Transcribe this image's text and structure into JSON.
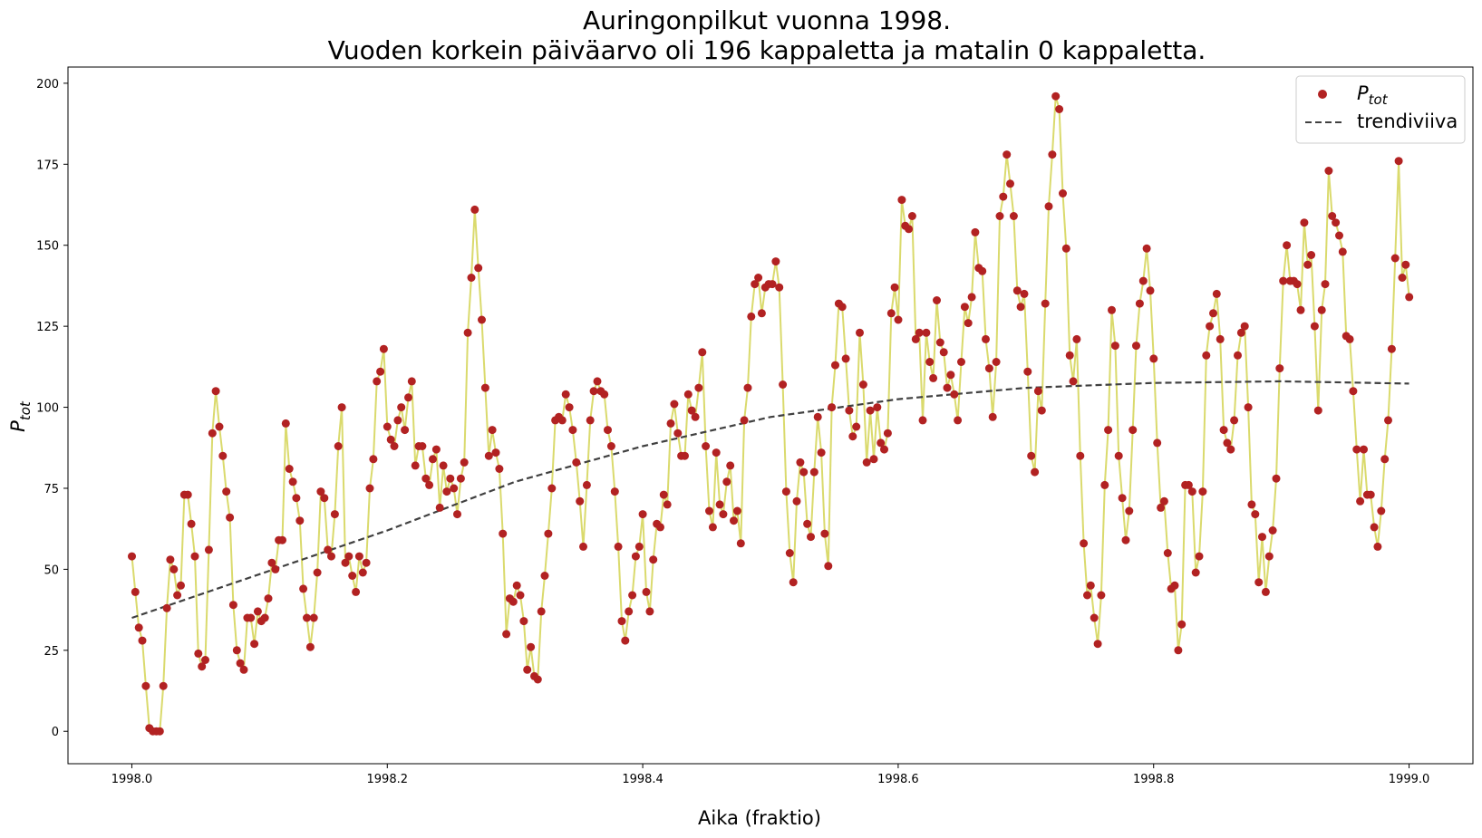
{
  "chart_data": {
    "type": "scatter",
    "title_line1": "Auringonpilkut vuonna 1998.",
    "title_line2": "Vuoden korkein päiväarvo oli 196 kappaletta ja matalin 0 kappaletta.",
    "xlabel": "Aika (fraktio)",
    "ylabel_main": "P",
    "ylabel_sub": "tot",
    "xlim": [
      1997.95,
      1999.05
    ],
    "ylim": [
      -10,
      205
    ],
    "x_ticks": [
      1998.0,
      1998.2,
      1998.4,
      1998.6,
      1998.8,
      1999.0
    ],
    "x_tick_labels": [
      "1998.0",
      "1998.2",
      "1998.4",
      "1998.6",
      "1998.8",
      "1999.0"
    ],
    "y_ticks": [
      0,
      25,
      50,
      75,
      100,
      125,
      150,
      175,
      200
    ],
    "y_tick_labels": [
      "0",
      "25",
      "50",
      "75",
      "100",
      "125",
      "150",
      "175",
      "200"
    ],
    "grid": false,
    "legend_position": "top-right",
    "colors": {
      "points": "#b22222",
      "line": "#d4d454",
      "trend": "#404040"
    },
    "series": [
      {
        "name": "P_tot",
        "legend_main": "P",
        "legend_sub": "tot",
        "x_start": 1998.0,
        "x_step": 0.00274,
        "y": [
          54,
          43,
          32,
          28,
          14,
          1,
          0,
          0,
          0,
          14,
          38,
          53,
          50,
          42,
          45,
          73,
          73,
          64,
          54,
          24,
          20,
          22,
          56,
          92,
          105,
          94,
          85,
          74,
          66,
          39,
          25,
          21,
          19,
          35,
          35,
          27,
          37,
          34,
          35,
          41,
          52,
          50,
          59,
          59,
          95,
          81,
          77,
          72,
          65,
          44,
          35,
          26,
          35,
          49,
          74,
          72,
          56,
          54,
          67,
          88,
          100,
          52,
          54,
          48,
          43,
          54,
          49,
          52,
          75,
          84,
          108,
          111,
          118,
          94,
          90,
          88,
          96,
          100,
          93,
          103,
          108,
          82,
          88,
          88,
          78,
          76,
          84,
          87,
          69,
          82,
          74,
          78,
          75,
          67,
          78,
          83,
          123,
          140,
          161,
          143,
          127,
          106,
          85,
          93,
          86,
          81,
          61,
          30,
          41,
          40,
          45,
          42,
          34,
          19,
          26,
          17,
          16,
          37,
          48,
          61,
          75,
          96,
          97,
          96,
          104,
          100,
          93,
          83,
          71,
          57,
          76,
          96,
          105,
          108,
          105,
          104,
          93,
          88,
          74,
          57,
          34,
          28,
          37,
          42,
          54,
          57,
          67,
          43,
          37,
          53,
          64,
          63,
          73,
          70,
          95,
          101,
          92,
          85,
          85,
          104,
          99,
          97,
          106,
          117,
          88,
          68,
          63,
          86,
          70,
          67,
          77,
          82,
          65,
          68,
          58,
          96,
          106,
          128,
          138,
          140,
          129,
          137,
          138,
          138,
          145,
          137,
          107,
          74,
          55,
          46,
          71,
          83,
          80,
          64,
          60,
          80,
          97,
          86,
          61,
          51,
          100,
          113,
          132,
          131,
          115,
          99,
          91,
          94,
          123,
          107,
          83,
          99,
          84,
          100,
          89,
          87,
          92,
          129,
          137,
          127,
          164,
          156,
          155,
          159,
          121,
          123,
          96,
          123,
          114,
          109,
          133,
          120,
          117,
          106,
          110,
          104,
          96,
          114,
          131,
          126,
          134,
          154,
          143,
          142,
          121,
          112,
          97,
          114,
          159,
          165,
          178,
          169,
          159,
          136,
          131,
          135,
          111,
          85,
          80,
          105,
          99,
          132,
          162,
          178,
          196,
          192,
          166,
          149,
          116,
          108,
          121,
          85,
          58,
          42,
          45,
          35,
          27,
          42,
          76,
          93,
          130,
          119,
          85,
          72,
          59,
          68,
          93,
          119,
          132,
          139,
          149,
          136,
          115,
          89,
          69,
          71,
          55,
          44,
          45,
          25,
          33,
          76,
          76,
          74,
          49,
          54,
          74,
          116,
          125,
          129,
          135,
          121,
          93,
          89,
          87,
          96,
          116,
          123,
          125,
          100,
          70,
          67,
          46,
          60,
          43,
          54,
          62,
          78,
          112,
          139,
          150,
          139,
          139,
          138,
          130,
          157,
          144,
          147,
          125,
          99,
          130,
          138,
          173,
          159,
          157,
          153,
          148,
          122,
          121,
          105,
          87,
          71,
          87,
          73,
          73,
          63,
          57,
          68,
          84,
          96,
          118,
          146,
          176,
          140,
          144,
          134
        ]
      }
    ],
    "trend": {
      "name": "trendiviiva",
      "x": [
        1998.0,
        1998.1,
        1998.2,
        1998.3,
        1998.4,
        1998.5,
        1998.6,
        1998.7,
        1998.8,
        1998.9,
        1999.0
      ],
      "y": [
        35,
        48.5,
        62,
        77,
        88,
        97,
        102.5,
        106,
        107.5,
        108,
        107.3
      ]
    }
  }
}
